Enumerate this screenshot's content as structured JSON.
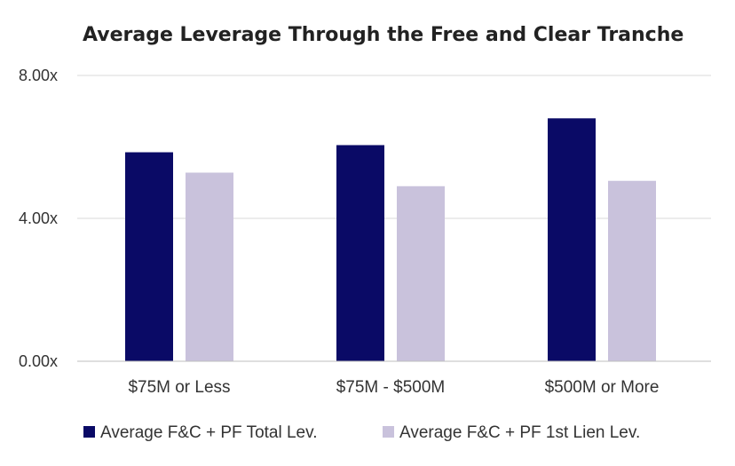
{
  "chart_data": {
    "type": "bar",
    "title": "Average Leverage Through the Free and Clear Tranche",
    "xlabel": "",
    "ylabel": "",
    "categories": [
      "$75M or Less",
      "$75M - $500M",
      "$500M or More"
    ],
    "series": [
      {
        "name": "Average F&C + PF Total Lev.",
        "values": [
          5.85,
          6.05,
          6.8
        ],
        "color": "#0a0a66"
      },
      {
        "name": "Average F&C + PF 1st Lien Lev.",
        "values": [
          5.28,
          4.9,
          5.05
        ],
        "color": "#c9c2dc"
      }
    ],
    "ylim": [
      0,
      8
    ],
    "yticks": [
      {
        "value": 0,
        "label": "0.00x"
      },
      {
        "value": 4,
        "label": "4.00x"
      },
      {
        "value": 8,
        "label": "8.00x"
      }
    ],
    "grid": true,
    "legend_position": "bottom"
  }
}
